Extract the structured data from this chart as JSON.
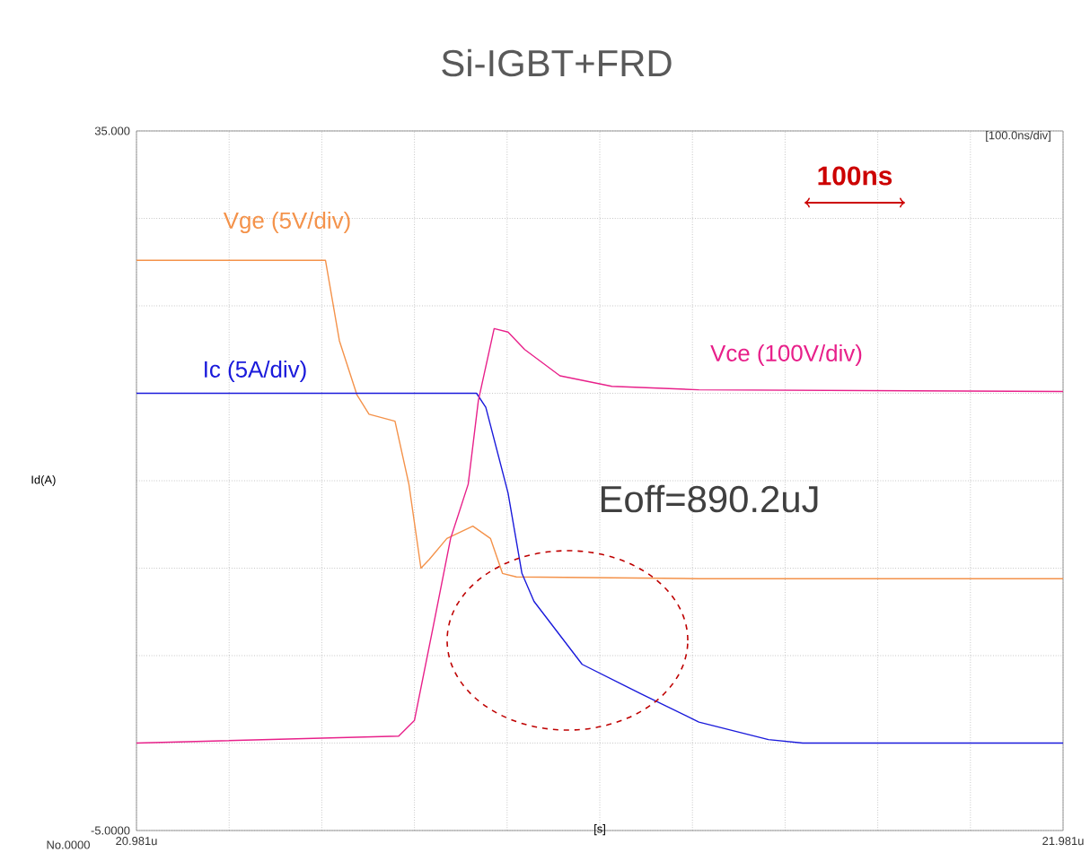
{
  "chart_data": {
    "type": "line",
    "title": "Si-IGBT+FRD",
    "xlabel": "[s]",
    "ylabel": "Id(A)",
    "xlim": [
      20.981,
      21.981
    ],
    "ylim": [
      -5,
      35
    ],
    "xticks": [
      {
        "value": 20.981,
        "label": "20.981u"
      },
      {
        "value": 21.081,
        "label": null
      },
      {
        "value": 21.181,
        "label": null
      },
      {
        "value": 21.281,
        "label": null
      },
      {
        "value": 21.381,
        "label": null
      },
      {
        "value": 21.481,
        "label": null
      },
      {
        "value": 21.581,
        "label": null
      },
      {
        "value": 21.681,
        "label": null
      },
      {
        "value": 21.781,
        "label": null
      },
      {
        "value": 21.881,
        "label": null
      },
      {
        "value": 21.981,
        "label": "21.981u"
      }
    ],
    "yticks": [
      {
        "value": -5,
        "label": "-5.0000"
      },
      {
        "value": 0,
        "label": null
      },
      {
        "value": 5,
        "label": null
      },
      {
        "value": 10,
        "label": null
      },
      {
        "value": 15,
        "label": null
      },
      {
        "value": 20,
        "label": null
      },
      {
        "value": 25,
        "label": null
      },
      {
        "value": 30,
        "label": null
      },
      {
        "value": 35,
        "label": "35.000"
      }
    ],
    "grid": true,
    "line_style": "solid",
    "series": [
      {
        "name": "Vge (5V/div)",
        "color": "#f4924a",
        "x": [
          20.981,
          21.185,
          21.2,
          21.219,
          21.232,
          21.26,
          21.275,
          21.288,
          21.297,
          21.316,
          21.344,
          21.363,
          21.376,
          21.391,
          21.588,
          21.981
        ],
        "values": [
          27.6,
          27.6,
          23.0,
          19.9,
          18.8,
          18.4,
          14.8,
          10.0,
          10.5,
          11.7,
          12.4,
          11.7,
          9.7,
          9.5,
          9.4,
          9.4
        ]
      },
      {
        "name": "Ic (5A/div)",
        "color": "#1a1adb",
        "x": [
          20.981,
          21.348,
          21.358,
          21.382,
          21.397,
          21.41,
          21.462,
          21.526,
          21.588,
          21.663,
          21.7,
          21.981
        ],
        "values": [
          20.0,
          20.0,
          19.2,
          14.3,
          9.7,
          8.1,
          4.5,
          2.8,
          1.2,
          0.2,
          0.0,
          0.0
        ]
      },
      {
        "name": "Vce (100V/div)",
        "color": "#e8208a",
        "x": [
          20.981,
          21.264,
          21.281,
          21.301,
          21.32,
          21.339,
          21.35,
          21.367,
          21.382,
          21.4,
          21.438,
          21.494,
          21.588,
          21.981
        ],
        "values": [
          0.0,
          0.4,
          1.3,
          6.6,
          11.7,
          14.8,
          19.6,
          23.7,
          23.5,
          22.5,
          21.0,
          20.4,
          20.2,
          20.1
        ]
      }
    ],
    "annotations": [
      "Eoff=890.2uJ",
      "100ns",
      "[100.0ns/div]",
      "No.0000"
    ]
  }
}
